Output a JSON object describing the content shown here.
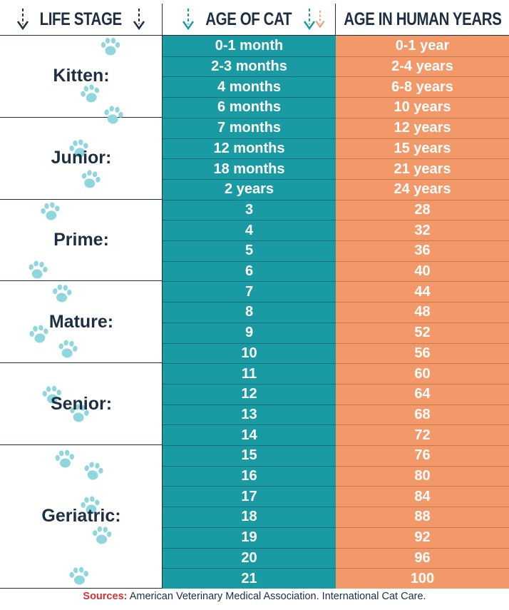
{
  "header": {
    "life_stage": "LIFE STAGE",
    "age_of_cat": "AGE OF CAT",
    "age_human": "AGE IN HUMAN YEARS"
  },
  "stages": [
    {
      "label": "Kitten:",
      "rows": [
        [
          "0-1 month",
          "0-1 year"
        ],
        [
          "2-3 months",
          "2-4 years"
        ],
        [
          "4 months",
          "6-8 years"
        ],
        [
          "6 months",
          "10 years"
        ]
      ]
    },
    {
      "label": "Junior:",
      "rows": [
        [
          "7 months",
          "12 years"
        ],
        [
          "12 months",
          "15 years"
        ],
        [
          "18 months",
          "21 years"
        ],
        [
          "2 years",
          "24 years"
        ]
      ]
    },
    {
      "label": "Prime:",
      "rows": [
        [
          "3",
          "28"
        ],
        [
          "4",
          "32"
        ],
        [
          "5",
          "36"
        ],
        [
          "6",
          "40"
        ]
      ]
    },
    {
      "label": "Mature:",
      "rows": [
        [
          "7",
          "44"
        ],
        [
          "8",
          "48"
        ],
        [
          "9",
          "52"
        ],
        [
          "10",
          "56"
        ]
      ]
    },
    {
      "label": "Senior:",
      "rows": [
        [
          "11",
          "60"
        ],
        [
          "12",
          "64"
        ],
        [
          "13",
          "68"
        ],
        [
          "14",
          "72"
        ]
      ]
    },
    {
      "label": "Geriatric:",
      "rows": [
        [
          "15",
          "76"
        ],
        [
          "16",
          "80"
        ],
        [
          "17",
          "84"
        ],
        [
          "18",
          "88"
        ],
        [
          "19",
          "92"
        ],
        [
          "20",
          "96"
        ],
        [
          "21",
          "100"
        ]
      ]
    }
  ],
  "footer": {
    "sources_label": "Sources:",
    "sources_text": " American Veterinary Medical Association. International Cat Care."
  },
  "colors": {
    "teal": "#1a9aa3",
    "orange": "#f39868",
    "navy": "#1e2f44",
    "paw": "#8fd6de",
    "source_red": "#d6312f"
  },
  "icons": [
    "arrow-down-icon",
    "paw-print-icon"
  ]
}
